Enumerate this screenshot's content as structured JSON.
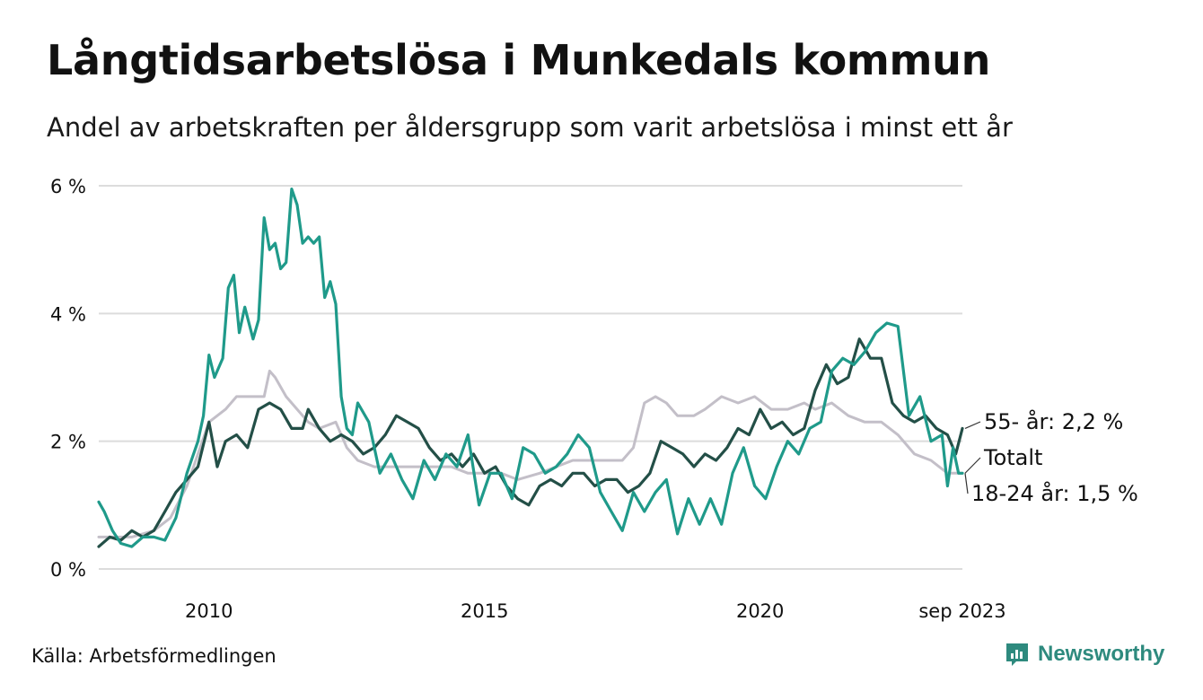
{
  "header": {
    "title": "Långtidsarbetslösa i Munkedals kommun",
    "subtitle": "Andel av arbetskraften per åldersgrupp som varit arbetslösa i minst ett år"
  },
  "footer": {
    "source": "Källa: Arbetsförmedlingen",
    "brand": "Newsworthy"
  },
  "colors": {
    "series_55": "#234f47",
    "series_total": "#c3bfc8",
    "series_18_24": "#1f9a8a",
    "grid": "#dcdcdc",
    "brand": "#2e8a7e"
  },
  "chart_data": {
    "type": "line",
    "title": "Långtidsarbetslösa i Munkedals kommun",
    "subtitle": "Andel av arbetskraften per åldersgrupp som varit arbetslösa i minst ett år",
    "xlabel": "",
    "ylabel": "",
    "x_range": [
      2008.0,
      2023.67
    ],
    "ylim": [
      0,
      6
    ],
    "y_ticks": [
      0,
      2,
      4,
      6
    ],
    "y_tick_labels": [
      "0 %",
      "2 %",
      "4 %",
      "6 %"
    ],
    "x_ticks": [
      2010,
      2015,
      2020,
      2023.67
    ],
    "x_tick_labels": [
      "2010",
      "2015",
      "2020",
      "sep 2023"
    ],
    "grid": true,
    "series": [
      {
        "name": "Totalt",
        "label": "Totalt",
        "points": [
          [
            2008.0,
            0.5
          ],
          [
            2008.3,
            0.5
          ],
          [
            2008.6,
            0.5
          ],
          [
            2009.0,
            0.6
          ],
          [
            2009.3,
            0.8
          ],
          [
            2009.6,
            1.3
          ],
          [
            2009.8,
            1.8
          ],
          [
            2010.0,
            2.3
          ],
          [
            2010.3,
            2.5
          ],
          [
            2010.5,
            2.7
          ],
          [
            2010.8,
            2.7
          ],
          [
            2011.0,
            2.7
          ],
          [
            2011.1,
            3.1
          ],
          [
            2011.2,
            3.0
          ],
          [
            2011.4,
            2.7
          ],
          [
            2011.6,
            2.5
          ],
          [
            2011.8,
            2.3
          ],
          [
            2012.0,
            2.2
          ],
          [
            2012.3,
            2.3
          ],
          [
            2012.5,
            1.9
          ],
          [
            2012.7,
            1.7
          ],
          [
            2013.0,
            1.6
          ],
          [
            2013.3,
            1.6
          ],
          [
            2013.6,
            1.6
          ],
          [
            2014.0,
            1.6
          ],
          [
            2014.4,
            1.6
          ],
          [
            2014.7,
            1.5
          ],
          [
            2015.0,
            1.5
          ],
          [
            2015.3,
            1.5
          ],
          [
            2015.6,
            1.4
          ],
          [
            2016.0,
            1.5
          ],
          [
            2016.3,
            1.6
          ],
          [
            2016.6,
            1.7
          ],
          [
            2016.9,
            1.7
          ],
          [
            2017.2,
            1.7
          ],
          [
            2017.5,
            1.7
          ],
          [
            2017.7,
            1.9
          ],
          [
            2017.9,
            2.6
          ],
          [
            2018.1,
            2.7
          ],
          [
            2018.3,
            2.6
          ],
          [
            2018.5,
            2.4
          ],
          [
            2018.8,
            2.4
          ],
          [
            2019.0,
            2.5
          ],
          [
            2019.3,
            2.7
          ],
          [
            2019.6,
            2.6
          ],
          [
            2019.9,
            2.7
          ],
          [
            2020.2,
            2.5
          ],
          [
            2020.5,
            2.5
          ],
          [
            2020.8,
            2.6
          ],
          [
            2021.0,
            2.5
          ],
          [
            2021.3,
            2.6
          ],
          [
            2021.6,
            2.4
          ],
          [
            2021.9,
            2.3
          ],
          [
            2022.2,
            2.3
          ],
          [
            2022.5,
            2.1
          ],
          [
            2022.8,
            1.8
          ],
          [
            2023.1,
            1.7
          ],
          [
            2023.4,
            1.5
          ],
          [
            2023.67,
            1.5
          ]
        ],
        "color": "#c3bfc8"
      },
      {
        "name": "55- år",
        "label": "55- år: 2,2 %",
        "points": [
          [
            2008.0,
            0.35
          ],
          [
            2008.2,
            0.5
          ],
          [
            2008.4,
            0.45
          ],
          [
            2008.6,
            0.6
          ],
          [
            2008.8,
            0.5
          ],
          [
            2009.0,
            0.6
          ],
          [
            2009.2,
            0.9
          ],
          [
            2009.4,
            1.2
          ],
          [
            2009.6,
            1.4
          ],
          [
            2009.8,
            1.6
          ],
          [
            2010.0,
            2.3
          ],
          [
            2010.15,
            1.6
          ],
          [
            2010.3,
            2.0
          ],
          [
            2010.5,
            2.1
          ],
          [
            2010.7,
            1.9
          ],
          [
            2010.9,
            2.5
          ],
          [
            2011.1,
            2.6
          ],
          [
            2011.3,
            2.5
          ],
          [
            2011.5,
            2.2
          ],
          [
            2011.7,
            2.2
          ],
          [
            2011.8,
            2.5
          ],
          [
            2012.0,
            2.2
          ],
          [
            2012.2,
            2.0
          ],
          [
            2012.4,
            2.1
          ],
          [
            2012.6,
            2.0
          ],
          [
            2012.8,
            1.8
          ],
          [
            2013.0,
            1.9
          ],
          [
            2013.2,
            2.1
          ],
          [
            2013.4,
            2.4
          ],
          [
            2013.6,
            2.3
          ],
          [
            2013.8,
            2.2
          ],
          [
            2014.0,
            1.9
          ],
          [
            2014.2,
            1.7
          ],
          [
            2014.4,
            1.8
          ],
          [
            2014.6,
            1.6
          ],
          [
            2014.8,
            1.8
          ],
          [
            2015.0,
            1.5
          ],
          [
            2015.2,
            1.6
          ],
          [
            2015.4,
            1.3
          ],
          [
            2015.6,
            1.1
          ],
          [
            2015.8,
            1.0
          ],
          [
            2016.0,
            1.3
          ],
          [
            2016.2,
            1.4
          ],
          [
            2016.4,
            1.3
          ],
          [
            2016.6,
            1.5
          ],
          [
            2016.8,
            1.5
          ],
          [
            2017.0,
            1.3
          ],
          [
            2017.2,
            1.4
          ],
          [
            2017.4,
            1.4
          ],
          [
            2017.6,
            1.2
          ],
          [
            2017.8,
            1.3
          ],
          [
            2018.0,
            1.5
          ],
          [
            2018.2,
            2.0
          ],
          [
            2018.4,
            1.9
          ],
          [
            2018.6,
            1.8
          ],
          [
            2018.8,
            1.6
          ],
          [
            2019.0,
            1.8
          ],
          [
            2019.2,
            1.7
          ],
          [
            2019.4,
            1.9
          ],
          [
            2019.6,
            2.2
          ],
          [
            2019.8,
            2.1
          ],
          [
            2020.0,
            2.5
          ],
          [
            2020.2,
            2.2
          ],
          [
            2020.4,
            2.3
          ],
          [
            2020.6,
            2.1
          ],
          [
            2020.8,
            2.2
          ],
          [
            2021.0,
            2.8
          ],
          [
            2021.2,
            3.2
          ],
          [
            2021.4,
            2.9
          ],
          [
            2021.6,
            3.0
          ],
          [
            2021.8,
            3.6
          ],
          [
            2022.0,
            3.3
          ],
          [
            2022.2,
            3.3
          ],
          [
            2022.4,
            2.6
          ],
          [
            2022.6,
            2.4
          ],
          [
            2022.8,
            2.3
          ],
          [
            2023.0,
            2.4
          ],
          [
            2023.2,
            2.2
          ],
          [
            2023.4,
            2.1
          ],
          [
            2023.55,
            1.8
          ],
          [
            2023.67,
            2.2
          ]
        ],
        "color": "#234f47"
      },
      {
        "name": "18-24 år",
        "label": "18-24 år: 1,5 %",
        "points": [
          [
            2008.0,
            1.05
          ],
          [
            2008.1,
            0.9
          ],
          [
            2008.25,
            0.6
          ],
          [
            2008.4,
            0.4
          ],
          [
            2008.6,
            0.35
          ],
          [
            2008.8,
            0.5
          ],
          [
            2009.0,
            0.5
          ],
          [
            2009.2,
            0.45
          ],
          [
            2009.4,
            0.8
          ],
          [
            2009.6,
            1.5
          ],
          [
            2009.8,
            2.0
          ],
          [
            2009.9,
            2.4
          ],
          [
            2010.0,
            3.35
          ],
          [
            2010.1,
            3.0
          ],
          [
            2010.25,
            3.3
          ],
          [
            2010.35,
            4.4
          ],
          [
            2010.45,
            4.6
          ],
          [
            2010.55,
            3.7
          ],
          [
            2010.65,
            4.1
          ],
          [
            2010.8,
            3.6
          ],
          [
            2010.9,
            3.9
          ],
          [
            2011.0,
            5.5
          ],
          [
            2011.1,
            5.0
          ],
          [
            2011.2,
            5.1
          ],
          [
            2011.3,
            4.7
          ],
          [
            2011.4,
            4.8
          ],
          [
            2011.5,
            5.95
          ],
          [
            2011.6,
            5.7
          ],
          [
            2011.7,
            5.1
          ],
          [
            2011.8,
            5.2
          ],
          [
            2011.9,
            5.1
          ],
          [
            2012.0,
            5.2
          ],
          [
            2012.1,
            4.25
          ],
          [
            2012.2,
            4.5
          ],
          [
            2012.3,
            4.15
          ],
          [
            2012.4,
            2.7
          ],
          [
            2012.5,
            2.2
          ],
          [
            2012.6,
            2.1
          ],
          [
            2012.7,
            2.6
          ],
          [
            2012.9,
            2.3
          ],
          [
            2013.1,
            1.5
          ],
          [
            2013.3,
            1.8
          ],
          [
            2013.5,
            1.4
          ],
          [
            2013.7,
            1.1
          ],
          [
            2013.9,
            1.7
          ],
          [
            2014.1,
            1.4
          ],
          [
            2014.3,
            1.8
          ],
          [
            2014.5,
            1.6
          ],
          [
            2014.7,
            2.1
          ],
          [
            2014.9,
            1.0
          ],
          [
            2015.1,
            1.5
          ],
          [
            2015.3,
            1.5
          ],
          [
            2015.5,
            1.1
          ],
          [
            2015.7,
            1.9
          ],
          [
            2015.9,
            1.8
          ],
          [
            2016.1,
            1.5
          ],
          [
            2016.3,
            1.6
          ],
          [
            2016.5,
            1.8
          ],
          [
            2016.7,
            2.1
          ],
          [
            2016.9,
            1.9
          ],
          [
            2017.1,
            1.2
          ],
          [
            2017.3,
            0.9
          ],
          [
            2017.5,
            0.6
          ],
          [
            2017.7,
            1.2
          ],
          [
            2017.9,
            0.9
          ],
          [
            2018.1,
            1.2
          ],
          [
            2018.3,
            1.4
          ],
          [
            2018.5,
            0.55
          ],
          [
            2018.7,
            1.1
          ],
          [
            2018.9,
            0.7
          ],
          [
            2019.1,
            1.1
          ],
          [
            2019.3,
            0.7
          ],
          [
            2019.5,
            1.5
          ],
          [
            2019.7,
            1.9
          ],
          [
            2019.9,
            1.3
          ],
          [
            2020.1,
            1.1
          ],
          [
            2020.3,
            1.6
          ],
          [
            2020.5,
            2.0
          ],
          [
            2020.7,
            1.8
          ],
          [
            2020.9,
            2.2
          ],
          [
            2021.1,
            2.3
          ],
          [
            2021.3,
            3.1
          ],
          [
            2021.5,
            3.3
          ],
          [
            2021.7,
            3.2
          ],
          [
            2021.9,
            3.4
          ],
          [
            2022.1,
            3.7
          ],
          [
            2022.3,
            3.85
          ],
          [
            2022.5,
            3.8
          ],
          [
            2022.7,
            2.4
          ],
          [
            2022.9,
            2.7
          ],
          [
            2023.1,
            2.0
          ],
          [
            2023.3,
            2.1
          ],
          [
            2023.4,
            1.3
          ],
          [
            2023.5,
            1.9
          ],
          [
            2023.6,
            1.5
          ],
          [
            2023.67,
            1.5
          ]
        ],
        "color": "#1f9a8a"
      }
    ]
  }
}
